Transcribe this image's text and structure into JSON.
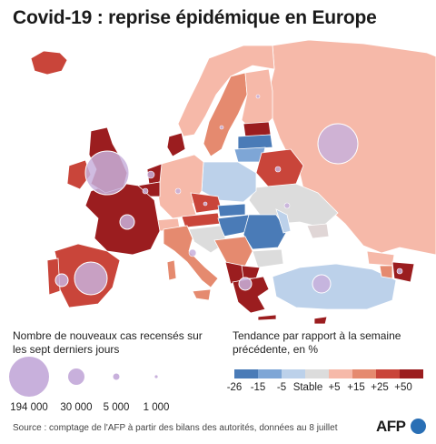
{
  "title": "Covid-19 : reprise épidémique en Europe",
  "legend_size": {
    "title": "Nombre de nouveaux cas recensés sur les sept derniers jours",
    "bubbles": [
      {
        "label": "194 000",
        "value": 194000
      },
      {
        "label": "30 000",
        "value": 30000
      },
      {
        "label": "5 000",
        "value": 5000
      },
      {
        "label": "1 000",
        "value": 1000
      }
    ],
    "bubble_color": "#c8b0dc"
  },
  "legend_trend": {
    "title": "Tendance par rapport à la semaine précédente, en %",
    "ticks": [
      "-26",
      "-15",
      "-5",
      "Stable",
      "+5",
      "+15",
      "+25",
      "+50"
    ],
    "colors": [
      "#4a7bb7",
      "#7ea6d6",
      "#bcd1ea",
      "#dcdcdc",
      "#f6b9a9",
      "#e58a6f",
      "#c9453a",
      "#9b1d1f"
    ]
  },
  "source": "Source : comptage de l'AFP à partir des bilans des autorités, données au 8 juillet",
  "logo": "AFP",
  "colors": {
    "sea": "#ffffff",
    "border": "#ffffff",
    "bubble": "#c8b0dc",
    "bubble_stroke": "#ffffff"
  }
}
